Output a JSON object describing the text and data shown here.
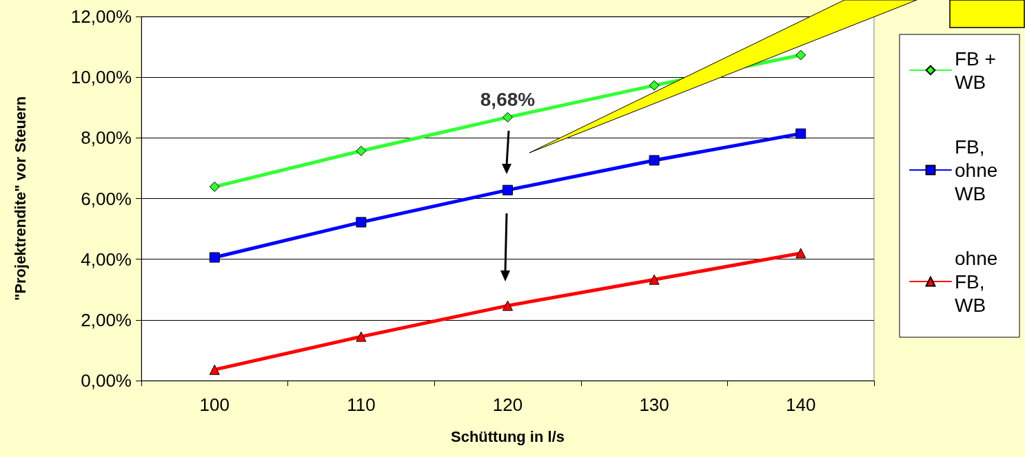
{
  "chart_data": {
    "type": "line",
    "xlabel": "Schüttung in l/s",
    "ylabel": "\"Projektrendite\" vor Steuern",
    "categories": [
      "100",
      "110",
      "120",
      "130",
      "140"
    ],
    "series": [
      {
        "name": "FB + WB",
        "color": "#33ff33",
        "marker": "diamond",
        "values": [
          6.39,
          7.57,
          8.68,
          9.73,
          10.73
        ]
      },
      {
        "name": "FB, ohne WB",
        "color": "#0000ff",
        "marker": "square",
        "values": [
          4.06,
          5.22,
          6.28,
          7.26,
          8.14
        ]
      },
      {
        "name": "ohne FB, WB",
        "color": "#ff0000",
        "marker": "triangle",
        "values": [
          0.36,
          1.45,
          2.47,
          3.33,
          4.2
        ]
      }
    ],
    "ylim": [
      0,
      12
    ],
    "yticks": [
      {
        "value": 0,
        "label": "0,00%"
      },
      {
        "value": 2,
        "label": "2,00%"
      },
      {
        "value": 4,
        "label": "4,00%"
      },
      {
        "value": 6,
        "label": "6,00%"
      },
      {
        "value": 8,
        "label": "8,00%"
      },
      {
        "value": 10,
        "label": "10,00%"
      },
      {
        "value": 12,
        "label": "12,00%"
      }
    ],
    "grid": "y",
    "legend": "right",
    "annotations": [
      {
        "text": "8,68%",
        "x": "120",
        "y": 8.68
      }
    ]
  }
}
